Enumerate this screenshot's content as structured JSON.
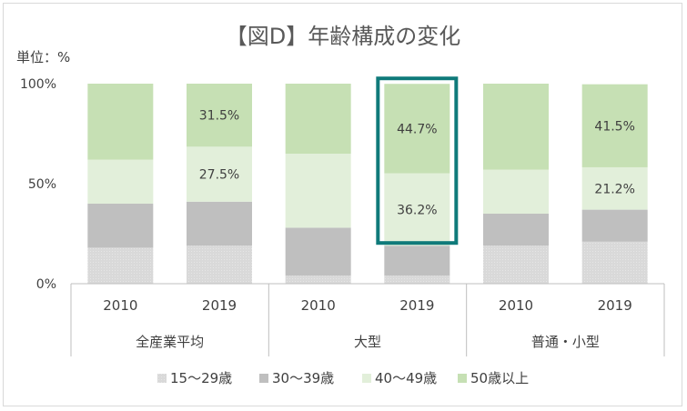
{
  "chart_data": {
    "type": "bar",
    "stacked": true,
    "title": "【図D】年齢構成の変化",
    "unit_label": "単位：%",
    "ylim": [
      0,
      100
    ],
    "y_ticks": [
      "0%",
      "50%",
      "100%"
    ],
    "groups": [
      {
        "name": "全産業平均",
        "years": [
          "2010",
          "2019"
        ]
      },
      {
        "name": "大型",
        "years": [
          "2010",
          "2019"
        ]
      },
      {
        "name": "普通・小型",
        "years": [
          "2010",
          "2019"
        ]
      }
    ],
    "categories": [
      "全産業平均 2010",
      "全産業平均 2019",
      "大型 2010",
      "大型 2019",
      "普通・小型 2010",
      "普通・小型 2019"
    ],
    "series": [
      {
        "name": "15～29歳",
        "color": "#d9d9d9",
        "values": [
          18,
          19,
          4,
          4,
          19,
          21
        ]
      },
      {
        "name": "30～39歳",
        "color": "#bfbfbf",
        "values": [
          22,
          22,
          24,
          15,
          16,
          16
        ]
      },
      {
        "name": "40～49歳",
        "color": "#e2efda",
        "values": [
          22,
          27.5,
          37,
          36.2,
          22,
          21.2
        ]
      },
      {
        "name": "50歳以上",
        "color": "#c6e0b4",
        "values": [
          38,
          31.5,
          35,
          44.7,
          43,
          41.5
        ]
      }
    ],
    "data_labels": [
      {
        "category_index": 1,
        "series_index": 2,
        "text": "27.5%"
      },
      {
        "category_index": 1,
        "series_index": 3,
        "text": "31.5%"
      },
      {
        "category_index": 3,
        "series_index": 2,
        "text": "36.2%"
      },
      {
        "category_index": 3,
        "series_index": 3,
        "text": "44.7%"
      },
      {
        "category_index": 5,
        "series_index": 2,
        "text": "21.2%"
      },
      {
        "category_index": 5,
        "series_index": 3,
        "text": "41.5%"
      }
    ],
    "highlight": {
      "category_index": 3,
      "color": "#0f7a7a"
    },
    "legend_position": "bottom",
    "grid": false
  }
}
